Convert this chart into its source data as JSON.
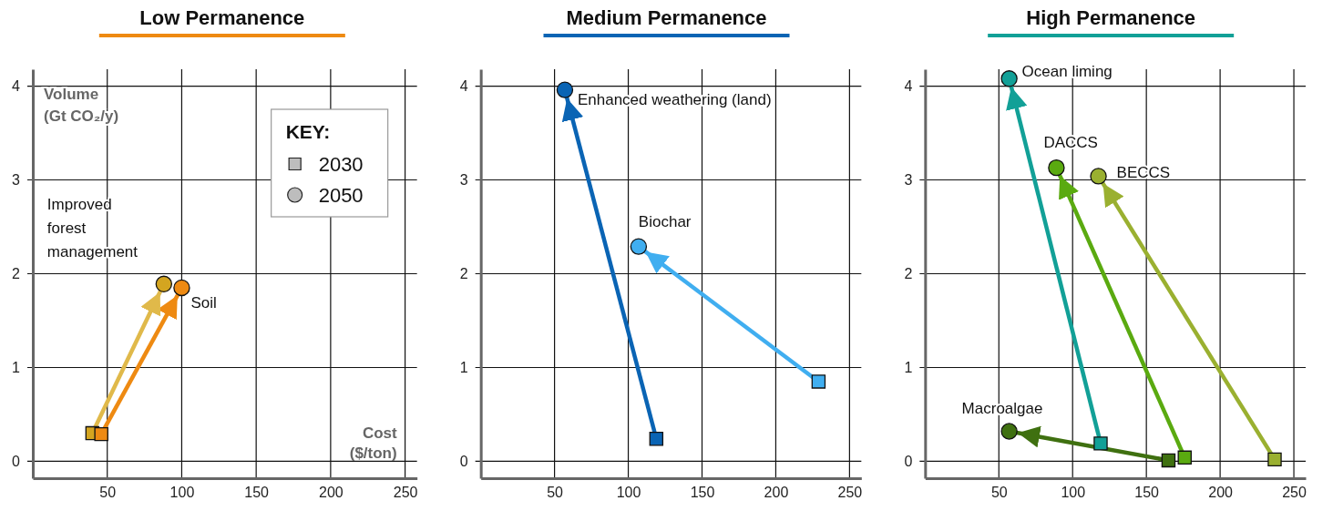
{
  "chart_data": [
    {
      "type": "scatter",
      "title": "Low Permanence",
      "xlabel": "Cost\n($/ton)",
      "ylabel": "Volume\n(Gt CO₂/y)",
      "xlim": [
        0,
        258
      ],
      "ylim": [
        -0.18,
        4.18
      ],
      "xticks": [
        50,
        100,
        150,
        200,
        250
      ],
      "yticks": [
        0,
        1,
        2,
        3,
        4
      ],
      "grid": true,
      "line_style": "solid",
      "series": [
        {
          "type": "line",
          "color": "#ee8a12",
          "x": [
            46,
            100
          ],
          "values": [
            0.29,
            1.85
          ]
        },
        {
          "type": "line",
          "color": "#e0b94a",
          "x": [
            40,
            88
          ],
          "values": [
            0.3,
            1.89
          ]
        },
        {
          "marker": "square",
          "x": [
            40,
            46
          ],
          "values": [
            0.3,
            0.29
          ],
          "colors": [
            "#d4a520",
            "#ee8a12"
          ]
        },
        {
          "marker": "circle",
          "x": [
            88,
            100
          ],
          "values": [
            1.89,
            1.85
          ],
          "colors": [
            "#d4a520",
            "#ee8a12"
          ]
        }
      ],
      "annotations": [
        {
          "text": "Improved forest management",
          "x": 88,
          "y": 1.89
        },
        {
          "text": "Soil",
          "x": 100,
          "y": 1.85
        },
        "KEY:",
        "2030",
        "2050"
      ]
    },
    {
      "type": "scatter",
      "title": "Medium Permanence",
      "xlim": [
        0,
        258
      ],
      "ylim": [
        -0.18,
        4.18
      ],
      "xticks": [
        50,
        100,
        150,
        200,
        250
      ],
      "yticks": [
        0,
        1,
        2,
        3,
        4
      ],
      "grid": true,
      "line_style": "solid",
      "series": [
        {
          "type": "line",
          "color": "#0a64b4",
          "x": [
            119,
            57
          ],
          "values": [
            0.24,
            3.96
          ]
        },
        {
          "type": "line",
          "color": "#40aef0",
          "x": [
            229,
            107
          ],
          "values": [
            0.85,
            2.29
          ]
        },
        {
          "marker": "square",
          "x": [
            119,
            229
          ],
          "values": [
            0.24,
            0.85
          ],
          "colors": [
            "#0a64b4",
            "#40aef0"
          ]
        },
        {
          "marker": "circle",
          "x": [
            57,
            107
          ],
          "values": [
            3.96,
            2.29
          ],
          "colors": [
            "#0a64b4",
            "#40aef0"
          ]
        }
      ],
      "annotations": [
        {
          "text": "Enhanced weathering (land)",
          "x": 57,
          "y": 3.96
        },
        {
          "text": "Biochar",
          "x": 107,
          "y": 2.29
        }
      ]
    },
    {
      "type": "scatter",
      "title": "High Permanence",
      "xlim": [
        0,
        258
      ],
      "ylim": [
        -0.18,
        4.18
      ],
      "xticks": [
        50,
        100,
        150,
        200,
        250
      ],
      "yticks": [
        0,
        1,
        2,
        3,
        4
      ],
      "grid": true,
      "line_style": "solid",
      "series": [
        {
          "type": "line",
          "color": "#12a097",
          "x": [
            119,
            57
          ],
          "values": [
            0.19,
            4.08
          ]
        },
        {
          "type": "line",
          "color": "#5aaa10",
          "x": [
            176,
            89
          ],
          "values": [
            0.04,
            3.13
          ]
        },
        {
          "type": "line",
          "color": "#9ab030",
          "x": [
            237,
            117.5
          ],
          "values": [
            0.02,
            3.04
          ]
        },
        {
          "type": "line",
          "color": "#3f7010",
          "x": [
            165,
            57
          ],
          "values": [
            0.01,
            0.32
          ]
        },
        {
          "marker": "square",
          "x": [
            119,
            176,
            237,
            165
          ],
          "values": [
            0.19,
            0.04,
            0.02,
            0.01
          ],
          "colors": [
            "#12a097",
            "#5aaa10",
            "#9ab030",
            "#3f7010"
          ]
        },
        {
          "marker": "circle",
          "x": [
            57,
            89,
            117.5,
            57
          ],
          "values": [
            4.08,
            3.13,
            3.04,
            0.32
          ],
          "colors": [
            "#12a097",
            "#5aaa10",
            "#9ab030",
            "#3f7010"
          ]
        }
      ],
      "annotations": [
        {
          "text": "Ocean liming",
          "x": 57,
          "y": 4.08
        },
        {
          "text": "DACCS",
          "x": 89,
          "y": 3.13
        },
        {
          "text": "BECCS",
          "x": 117.5,
          "y": 3.04
        },
        {
          "text": "Macroalgae",
          "x": 57,
          "y": 0.32
        }
      ]
    }
  ]
}
